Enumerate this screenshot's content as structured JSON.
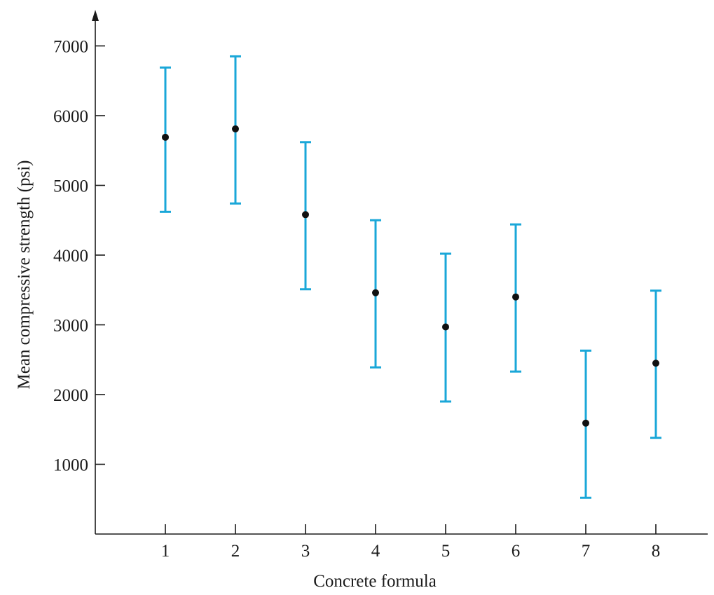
{
  "chart_data": {
    "type": "scatter",
    "title": "",
    "xlabel": "Concrete formula",
    "ylabel": "Mean compressive strength (psi)",
    "categories": [
      "1",
      "2",
      "3",
      "4",
      "5",
      "6",
      "7",
      "8"
    ],
    "yticks": [
      "1000",
      "2000",
      "3000",
      "4000",
      "5000",
      "6000",
      "7000"
    ],
    "ylim": [
      0,
      7400
    ],
    "grid": false,
    "means": [
      5690,
      5810,
      4580,
      3460,
      2970,
      3400,
      1590,
      2450
    ],
    "lower": [
      4620,
      4740,
      3510,
      2390,
      1900,
      2330,
      520,
      1380
    ],
    "upper": [
      6690,
      6850,
      5620,
      4500,
      4020,
      4440,
      2630,
      3490
    ],
    "colors": {
      "errorbar": "#1aa7d8",
      "point": "#111111",
      "axis": "#1a1a1a"
    }
  }
}
